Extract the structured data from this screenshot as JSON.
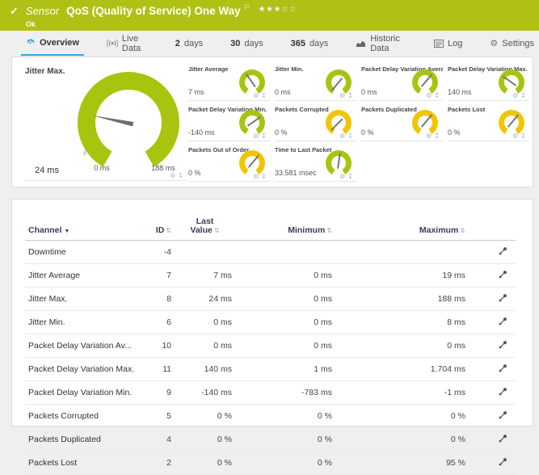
{
  "colors": {
    "header_green": "#b1c015",
    "arc_green": "#a9c40e",
    "arc_yellow": "#f3c400",
    "accent_blue": "#35a8dc",
    "table_header_text": "#343d5c"
  },
  "header": {
    "check": "✓",
    "kind": "Sensor",
    "title": "QoS (Quality of Service) One Way",
    "flag": "⚐",
    "status": "Ok",
    "stars_filled": 3,
    "stars_total": 5
  },
  "tabs": [
    {
      "num": "",
      "label": "Overview",
      "icon": "gauge",
      "active": true
    },
    {
      "num": "",
      "label": "Live Data",
      "icon": "live",
      "active": false
    },
    {
      "num": "2",
      "label": "days",
      "icon": "",
      "active": false
    },
    {
      "num": "30",
      "label": "days",
      "icon": "",
      "active": false
    },
    {
      "num": "365",
      "label": "days",
      "icon": "",
      "active": false
    },
    {
      "num": "",
      "label": "Historic Data",
      "icon": "chart",
      "active": false
    },
    {
      "num": "",
      "label": "Log",
      "icon": "log",
      "active": false
    },
    {
      "num": "",
      "label": "Settings",
      "icon": "gear",
      "active": false
    }
  ],
  "main_gauge": {
    "title": "Jitter Max.",
    "value": "24 ms",
    "scale_min": "0 ms",
    "scale_max": "188 ms",
    "scale_icon": "x̄",
    "color": "green",
    "needle": -78
  },
  "gauges": [
    {
      "title": "Jitter Average",
      "value": "7 ms",
      "color": "green",
      "needle": -35
    },
    {
      "title": "Jitter Min.",
      "value": "0 ms",
      "color": "green",
      "needle": -140
    },
    {
      "title": "Packet Delay Variation Average",
      "value": "0 ms",
      "color": "green",
      "needle": 40
    },
    {
      "title": "Packet Delay Variation Max.",
      "value": "140 ms",
      "color": "green",
      "needle": -55
    },
    {
      "title": "Packet Delay Variation Min.",
      "value": "-140 ms",
      "color": "green",
      "needle": 55
    },
    {
      "title": "Packets Corrupted",
      "value": "0 %",
      "color": "yellow",
      "needle": -135
    },
    {
      "title": "Packets Duplicated",
      "value": "0 %",
      "color": "yellow",
      "needle": 40
    },
    {
      "title": "Packets Lost",
      "value": "0 %",
      "color": "yellow",
      "needle": 40
    },
    {
      "title": "Packets Out of Order",
      "value": "0 %",
      "color": "yellow",
      "needle": 40
    },
    {
      "title": "Time to Last Packet",
      "value": "33.581 msec",
      "color": "green",
      "needle": 8
    }
  ],
  "gauge_actions": {
    "gear": "⚙",
    "pin": "↧"
  },
  "table": {
    "headers": {
      "channel": "Channel",
      "id": "ID",
      "last_line1": "Last",
      "last_line2": "Value",
      "minimum": "Minimum",
      "maximum": "Maximum"
    },
    "rows": [
      {
        "channel": "Downtime",
        "id": "-4",
        "last": "",
        "min": "",
        "max": ""
      },
      {
        "channel": "Jitter Average",
        "id": "7",
        "last": "7 ms",
        "min": "0 ms",
        "max": "19 ms"
      },
      {
        "channel": "Jitter Max.",
        "id": "8",
        "last": "24 ms",
        "min": "0 ms",
        "max": "188 ms"
      },
      {
        "channel": "Jitter Min.",
        "id": "6",
        "last": "0 ms",
        "min": "0 ms",
        "max": "8 ms"
      },
      {
        "channel": "Packet Delay Variation Av...",
        "id": "10",
        "last": "0 ms",
        "min": "0 ms",
        "max": "0 ms"
      },
      {
        "channel": "Packet Delay Variation Max.",
        "id": "11",
        "last": "140 ms",
        "min": "1 ms",
        "max": "1.704 ms"
      },
      {
        "channel": "Packet Delay Variation Min.",
        "id": "9",
        "last": "-140 ms",
        "min": "-783 ms",
        "max": "-1 ms"
      },
      {
        "channel": "Packets Corrupted",
        "id": "5",
        "last": "0 %",
        "min": "0 %",
        "max": "0 %"
      },
      {
        "channel": "Packets Duplicated",
        "id": "4",
        "last": "0 %",
        "min": "0 %",
        "max": "0 %"
      },
      {
        "channel": "Packets Lost",
        "id": "2",
        "last": "0 %",
        "min": "0 %",
        "max": "95 %"
      }
    ]
  }
}
